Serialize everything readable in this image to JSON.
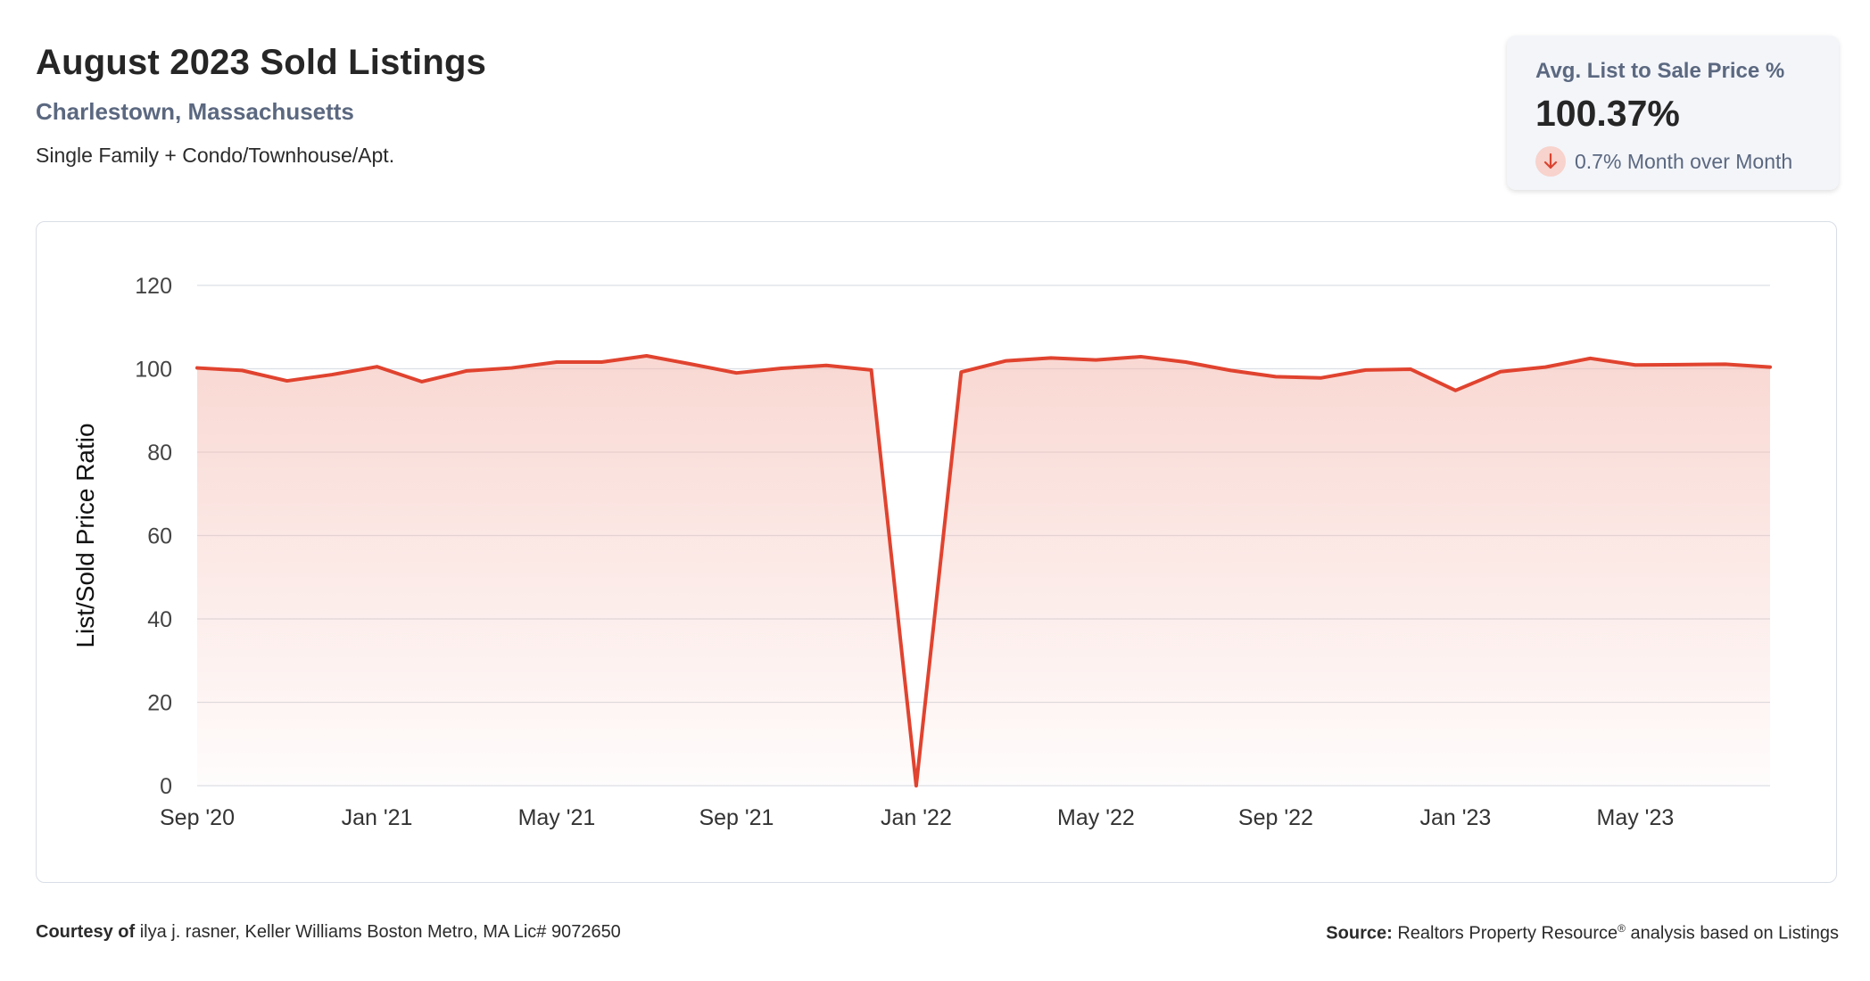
{
  "header": {
    "title": "August 2023 Sold Listings",
    "location": "Charlestown, Massachusetts",
    "property_types": "Single Family + Condo/Townhouse/Apt."
  },
  "stat_card": {
    "label": "Avg. List to Sale Price %",
    "value": "100.37%",
    "change": "0.7% Month over Month",
    "change_direction": "down",
    "change_icon": "arrow-down-icon"
  },
  "colors": {
    "line": "#e0432f",
    "fill_top": "#f4b8ae",
    "grid": "#dcdfe5",
    "axis_text": "#444444"
  },
  "chart_data": {
    "type": "area",
    "title": "",
    "xlabel": "",
    "ylabel": "List/Sold Price Ratio",
    "ylim": [
      0,
      120
    ],
    "yticks": [
      0,
      20,
      40,
      60,
      80,
      100,
      120
    ],
    "xtick_labels": [
      "Sep '20",
      "Jan '21",
      "May '21",
      "Sep '21",
      "Jan '22",
      "May '22",
      "Sep '22",
      "Jan '23",
      "May '23"
    ],
    "grid": true,
    "x": [
      "Sep '20",
      "Oct '20",
      "Nov '20",
      "Dec '20",
      "Jan '21",
      "Feb '21",
      "Mar '21",
      "Apr '21",
      "May '21",
      "Jun '21",
      "Jul '21",
      "Aug '21",
      "Sep '21",
      "Oct '21",
      "Nov '21",
      "Dec '21",
      "Jan '22",
      "Feb '22",
      "Mar '22",
      "Apr '22",
      "May '22",
      "Jun '22",
      "Jul '22",
      "Aug '22",
      "Sep '22",
      "Oct '22",
      "Nov '22",
      "Dec '22",
      "Jan '23",
      "Feb '23",
      "Mar '23",
      "Apr '23",
      "May '23",
      "Jun '23",
      "Jul '23",
      "Aug '23"
    ],
    "series": [
      {
        "values": [
          100.2,
          99.6,
          97.1,
          98.6,
          100.5,
          96.9,
          99.5,
          100.2,
          101.6,
          101.6,
          103.1,
          101.1,
          99.0,
          100.1,
          100.8,
          99.7,
          0,
          99.2,
          101.9,
          102.6,
          102.1,
          102.9,
          101.6,
          99.6,
          98.1,
          97.8,
          99.7,
          99.9,
          94.8,
          99.3,
          100.4,
          102.5,
          100.9,
          101.0,
          101.1,
          100.4
        ]
      }
    ]
  },
  "footer": {
    "courtesy_label": "Courtesy of",
    "courtesy_text": "ilya j. rasner, Keller Williams Boston Metro, MA Lic# 9072650",
    "source_label": "Source:",
    "source_text": "Realtors Property Resource",
    "source_mark": "®",
    "source_suffix": "analysis based on Listings"
  }
}
